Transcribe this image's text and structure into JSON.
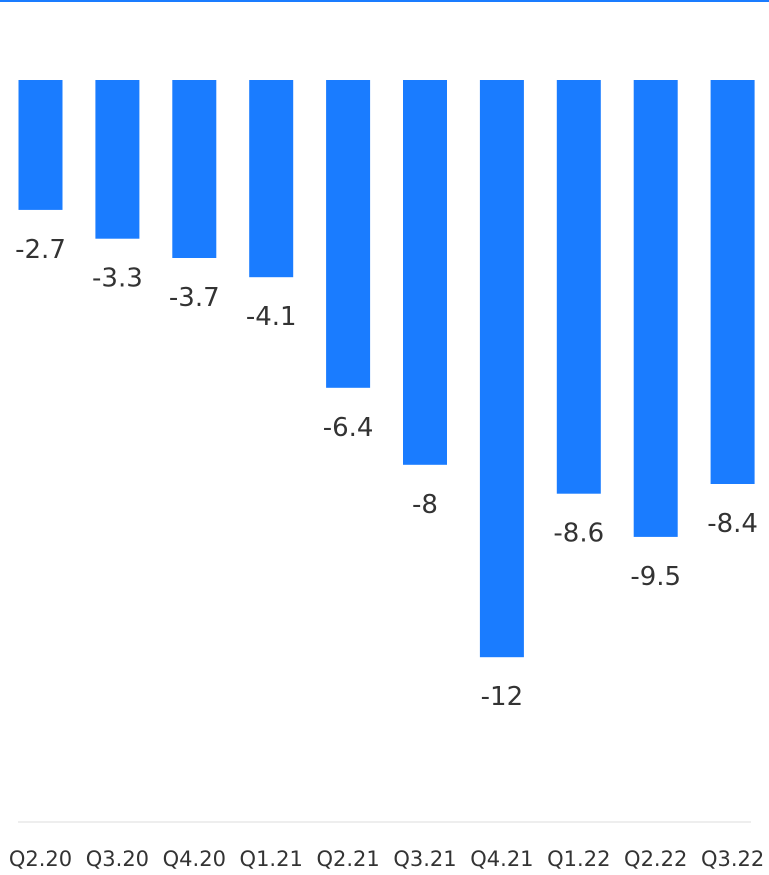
{
  "colors": {
    "top_rule": "#1a7cff",
    "bar": "#1a7cff",
    "baseline": "#dddddd",
    "text": "#333333"
  },
  "chart_data": {
    "type": "bar",
    "categories": [
      "Q2.20",
      "Q3.20",
      "Q4.20",
      "Q1.21",
      "Q2.21",
      "Q3.21",
      "Q4.21",
      "Q1.22",
      "Q2.22",
      "Q3.22"
    ],
    "values": [
      -2.7,
      -3.3,
      -3.7,
      -4.1,
      -6.4,
      -8,
      -12,
      -8.6,
      -9.5,
      -8.4
    ],
    "value_labels": [
      "-2.7",
      "-3.3",
      "-3.7",
      "-4.1",
      "-6.4",
      "-8",
      "-12",
      "-8.6",
      "-9.5",
      "-8.4"
    ],
    "title": "",
    "xlabel": "",
    "ylabel": "",
    "ylim": [
      -12,
      0
    ],
    "grid": false,
    "legend": "none"
  }
}
